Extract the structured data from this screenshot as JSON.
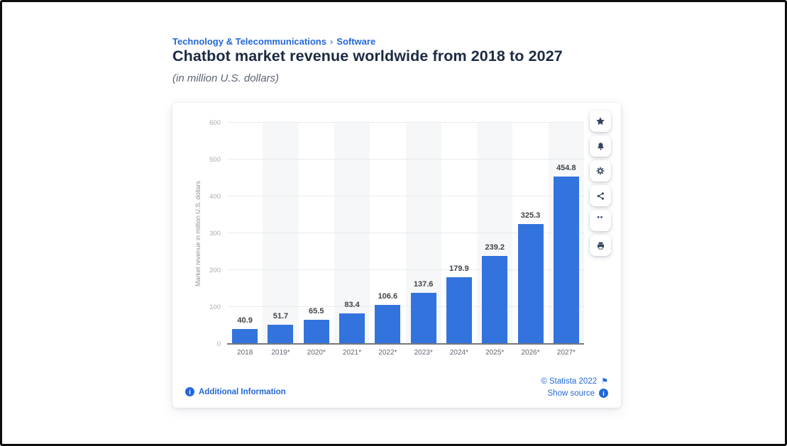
{
  "page": {
    "breadcrumb": {
      "category": "Technology & Telecommunications",
      "separator": "›",
      "subcategory": "Software"
    },
    "title": "Chatbot market revenue worldwide from 2018 to 2027",
    "subtitle": "(in million U.S. dollars)"
  },
  "chart_data": {
    "type": "bar",
    "categories": [
      "2018",
      "2019*",
      "2020*",
      "2021*",
      "2022*",
      "2023*",
      "2024*",
      "2025*",
      "2026*",
      "2027*"
    ],
    "values": [
      40.9,
      51.7,
      65.5,
      83.4,
      106.6,
      137.6,
      179.9,
      239.2,
      325.3,
      454.8
    ],
    "title": "Chatbot market revenue worldwide from 2018 to 2027",
    "xlabel": "",
    "ylabel": "Market revenue in million U.S. dollars",
    "ylim": [
      0,
      600
    ],
    "yticks": [
      0,
      100,
      200,
      300,
      400,
      500,
      600
    ],
    "grid": true,
    "legend": false,
    "value_labels": true,
    "bar_color": "#3373dd",
    "band_color": "#f5f7f8"
  },
  "toolbar": {
    "buttons": [
      {
        "name": "favorite",
        "icon": "star-icon"
      },
      {
        "name": "notifications",
        "icon": "bell-icon"
      },
      {
        "name": "settings",
        "icon": "gear-icon"
      },
      {
        "name": "share",
        "icon": "share-icon"
      },
      {
        "name": "cite",
        "icon": "quote-icon"
      },
      {
        "name": "print",
        "icon": "printer-icon"
      }
    ]
  },
  "footer": {
    "additional_information": "Additional Information",
    "copyright": "© Statista 2022",
    "show_source": "Show source",
    "flag_icon": "⚑",
    "info_icon": "i",
    "quote_glyph": "“"
  },
  "colors": {
    "link_blue": "#2368d8",
    "bar_blue": "#3373dd",
    "title_navy": "#1b2b42",
    "icon_navy": "#33455f",
    "grid_gray": "#e8eaec"
  }
}
